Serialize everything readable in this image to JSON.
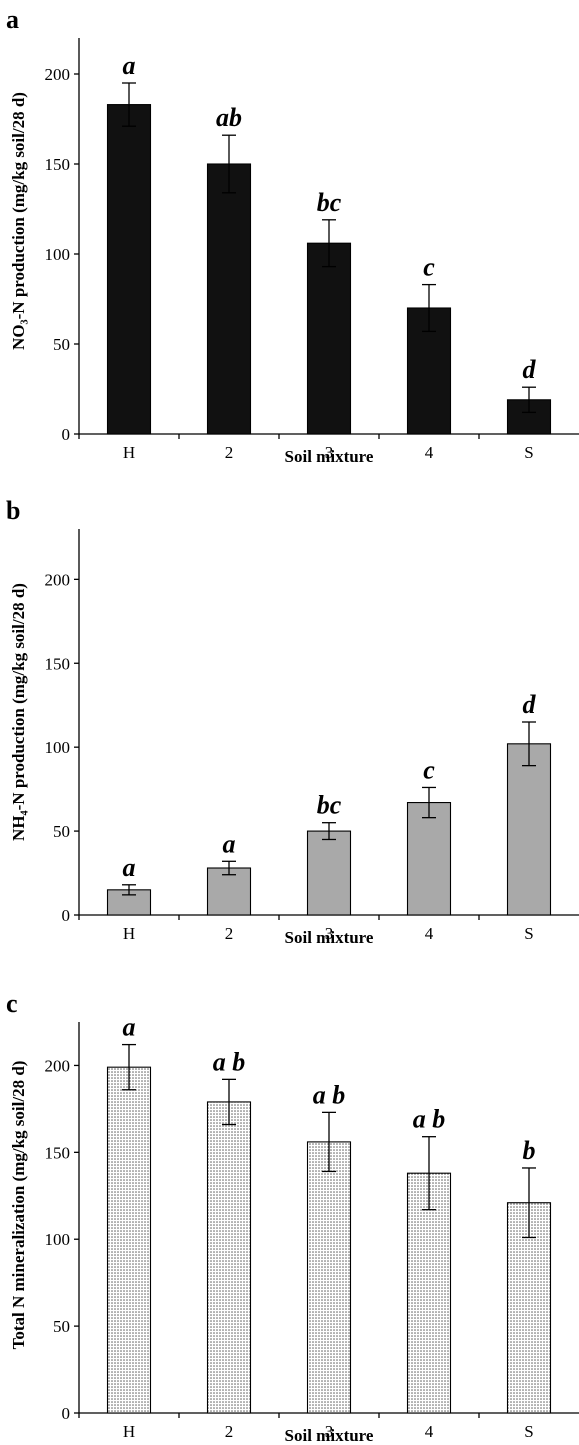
{
  "chart_data": [
    {
      "panel": "a",
      "type": "bar",
      "categories": [
        "H",
        "2",
        "3",
        "4",
        "S"
      ],
      "values": [
        183,
        150,
        106,
        70,
        19
      ],
      "errors": [
        12,
        16,
        13,
        13,
        7
      ],
      "significance_letters": [
        "a",
        "ab",
        "bc",
        "c",
        "d"
      ],
      "xlabel": "Soil mixture",
      "ylabel": "NO₃-N production (mg/kg soil/28 d)",
      "ylim": [
        0,
        220
      ],
      "yticks": [
        0,
        50,
        100,
        150,
        200
      ],
      "bar_color": "#111111",
      "bar_fill": "solid"
    },
    {
      "panel": "b",
      "type": "bar",
      "categories": [
        "H",
        "2",
        "3",
        "4",
        "S"
      ],
      "values": [
        15,
        28,
        50,
        67,
        102
      ],
      "errors": [
        3,
        4,
        5,
        9,
        13
      ],
      "significance_letters": [
        "a",
        "a",
        "bc",
        "c",
        "d"
      ],
      "xlabel": "Soil mixture",
      "ylabel": "NH₄-N production (mg/kg soil/28 d)",
      "ylim": [
        0,
        230
      ],
      "yticks": [
        0,
        50,
        100,
        150,
        200
      ],
      "bar_color": "#a9a9a9",
      "bar_fill": "solid"
    },
    {
      "panel": "c",
      "type": "bar",
      "categories": [
        "H",
        "2",
        "3",
        "4",
        "S"
      ],
      "values": [
        199,
        179,
        156,
        138,
        121
      ],
      "errors": [
        13,
        13,
        17,
        21,
        20
      ],
      "significance_letters": [
        "a",
        "a b",
        "a b",
        "a b",
        "b"
      ],
      "xlabel": "Soil mixture",
      "ylabel": "Total N mineralization (mg/kg soil/28 d)",
      "ylim": [
        0,
        225
      ],
      "yticks": [
        0,
        50,
        100,
        150,
        200
      ],
      "bar_color": "#e6e6e6",
      "bar_fill": "dotted"
    }
  ]
}
